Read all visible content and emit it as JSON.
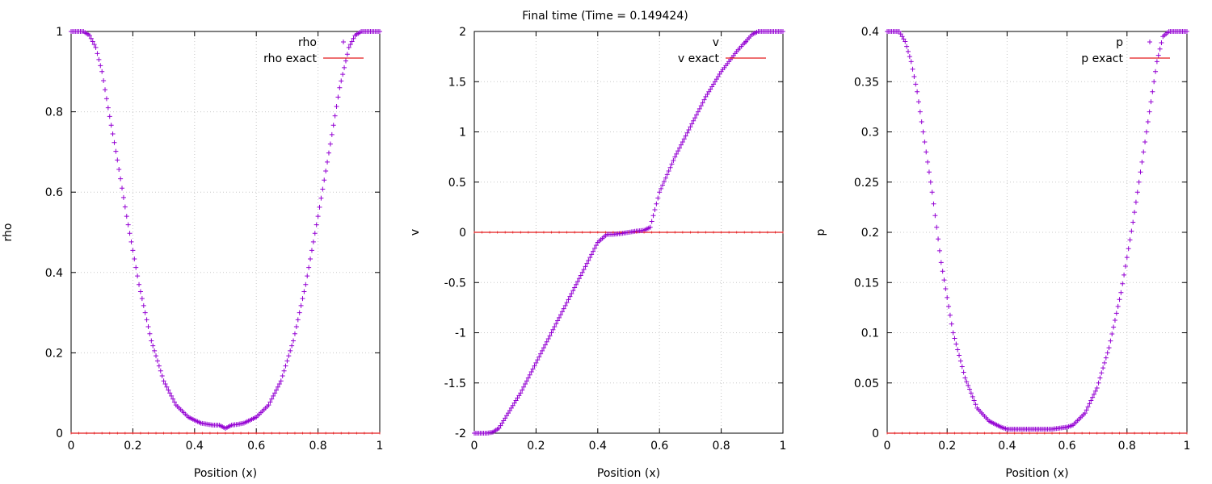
{
  "figure": {
    "title": "Final time (Time = 0.149424)"
  },
  "colors": {
    "series": "#9400d3",
    "exact": "#e41a1c",
    "grid": "#c8c8c8",
    "axis": "#000000"
  },
  "chart_data": [
    {
      "type": "scatter",
      "xlabel": "Position (x)",
      "ylabel": "rho",
      "xlim": [
        0,
        1
      ],
      "ylim": [
        0,
        1
      ],
      "xticks": [
        "0",
        "0.2",
        "0.4",
        "0.6",
        "0.8",
        "1"
      ],
      "yticks": [
        "0",
        "0.2",
        "0.4",
        "0.6",
        "0.8",
        "1"
      ],
      "grid": true,
      "legend_position": "top-right",
      "series": [
        {
          "name": "rho",
          "style": "points",
          "x": [
            0,
            0.04,
            0.06,
            0.08,
            0.1,
            0.12,
            0.15,
            0.18,
            0.22,
            0.26,
            0.3,
            0.34,
            0.38,
            0.42,
            0.46,
            0.48,
            0.5,
            0.52,
            0.54,
            0.56,
            0.6,
            0.64,
            0.68,
            0.72,
            0.76,
            0.8,
            0.84,
            0.87,
            0.9,
            0.92,
            0.94,
            0.96,
            1
          ],
          "y": [
            1,
            1,
            0.99,
            0.96,
            0.9,
            0.81,
            0.68,
            0.54,
            0.37,
            0.23,
            0.13,
            0.07,
            0.04,
            0.025,
            0.02,
            0.02,
            0.012,
            0.02,
            0.022,
            0.025,
            0.04,
            0.07,
            0.13,
            0.23,
            0.37,
            0.54,
            0.72,
            0.86,
            0.96,
            0.99,
            1,
            1,
            1
          ]
        },
        {
          "name": "rho exact",
          "style": "line",
          "x": [
            0,
            1
          ],
          "y": [
            0,
            0
          ]
        }
      ]
    },
    {
      "type": "scatter",
      "xlabel": "Position (x)",
      "ylabel": "v",
      "xlim": [
        0,
        1
      ],
      "ylim": [
        -2,
        2
      ],
      "xticks": [
        "0",
        "0.2",
        "0.4",
        "0.6",
        "0.8",
        "1"
      ],
      "yticks": [
        "-2",
        "-1.5",
        "-1",
        "-0.5",
        "0",
        "0.5",
        "1",
        "1.5",
        "2"
      ],
      "grid": true,
      "legend_position": "top-right",
      "series": [
        {
          "name": "v",
          "style": "points",
          "x": [
            0,
            0.04,
            0.06,
            0.08,
            0.1,
            0.15,
            0.2,
            0.25,
            0.3,
            0.35,
            0.4,
            0.43,
            0.45,
            0.48,
            0.5,
            0.52,
            0.55,
            0.57,
            0.6,
            0.65,
            0.7,
            0.75,
            0.8,
            0.85,
            0.9,
            0.92,
            0.94,
            0.96,
            1
          ],
          "y": [
            -2,
            -2,
            -1.99,
            -1.95,
            -1.85,
            -1.6,
            -1.3,
            -1.0,
            -0.7,
            -0.4,
            -0.1,
            -0.02,
            -0.02,
            -0.01,
            0,
            0.01,
            0.02,
            0.05,
            0.4,
            0.75,
            1.05,
            1.35,
            1.6,
            1.8,
            1.97,
            2,
            2,
            2,
            2
          ]
        },
        {
          "name": "v exact",
          "style": "line",
          "x": [
            0,
            1
          ],
          "y": [
            0,
            0
          ]
        }
      ]
    },
    {
      "type": "scatter",
      "xlabel": "Position (x)",
      "ylabel": "p",
      "xlim": [
        0,
        1
      ],
      "ylim": [
        0,
        0.4
      ],
      "xticks": [
        "0",
        "0.2",
        "0.4",
        "0.6",
        "0.8",
        "1"
      ],
      "yticks": [
        "0",
        "0.05",
        "0.1",
        "0.15",
        "0.2",
        "0.25",
        "0.3",
        "0.35",
        "0.4"
      ],
      "grid": true,
      "legend_position": "top-right",
      "series": [
        {
          "name": "p",
          "style": "points",
          "x": [
            0,
            0.04,
            0.06,
            0.08,
            0.1,
            0.12,
            0.15,
            0.18,
            0.22,
            0.26,
            0.3,
            0.34,
            0.38,
            0.4,
            0.45,
            0.5,
            0.55,
            0.6,
            0.62,
            0.66,
            0.7,
            0.74,
            0.78,
            0.82,
            0.85,
            0.88,
            0.9,
            0.92,
            0.94,
            1
          ],
          "y": [
            0.4,
            0.4,
            0.39,
            0.37,
            0.34,
            0.3,
            0.24,
            0.17,
            0.1,
            0.055,
            0.025,
            0.012,
            0.006,
            0.004,
            0.004,
            0.004,
            0.004,
            0.006,
            0.008,
            0.02,
            0.045,
            0.085,
            0.14,
            0.21,
            0.27,
            0.33,
            0.37,
            0.395,
            0.4,
            0.4
          ]
        },
        {
          "name": "p exact",
          "style": "line",
          "x": [
            0,
            1
          ],
          "y": [
            0,
            0
          ]
        }
      ]
    }
  ]
}
